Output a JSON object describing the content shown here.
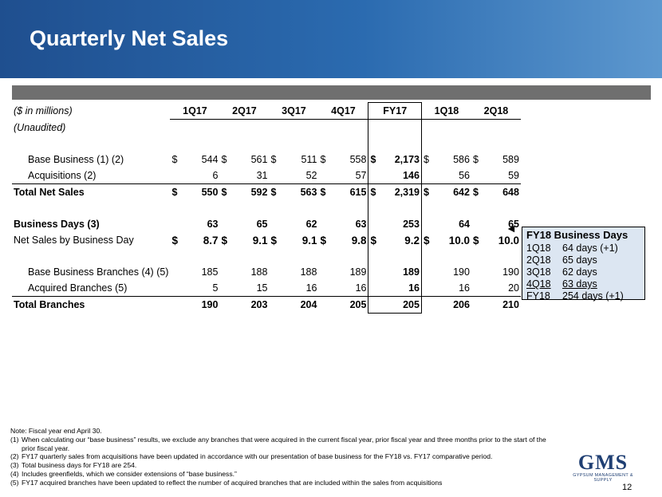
{
  "title": "Quarterly Net Sales",
  "table": {
    "unit_label": "($ in millions)",
    "unaudited_label": "(Unaudited)",
    "columns": [
      "1Q17",
      "2Q17",
      "3Q17",
      "4Q17",
      "FY17",
      "1Q18",
      "2Q18"
    ],
    "rows": {
      "base_business": {
        "label": "Base Business (1) (2)",
        "values": [
          "544",
          "561",
          "511",
          "558",
          "2,173",
          "586",
          "589"
        ]
      },
      "acquisitions": {
        "label": "Acquisitions (2)",
        "values": [
          "6",
          "31",
          "52",
          "57",
          "146",
          "56",
          "59"
        ]
      },
      "total_net_sales": {
        "label": "Total Net Sales",
        "values": [
          "550",
          "592",
          "563",
          "615",
          "2,319",
          "642",
          "648"
        ]
      },
      "business_days": {
        "label": "Business Days (3)",
        "values": [
          "63",
          "65",
          "62",
          "63",
          "253",
          "64",
          "65"
        ]
      },
      "net_sales_per_day": {
        "label": "Net Sales by Business Day",
        "values": [
          "8.7",
          "9.1",
          "9.1",
          "9.8",
          "9.2",
          "10.0",
          "10.0"
        ]
      },
      "base_branches": {
        "label": "Base Business Branches (4) (5)",
        "values": [
          "185",
          "188",
          "188",
          "189",
          "189",
          "190",
          "190"
        ]
      },
      "acquired_branches": {
        "label": "Acquired Branches (5)",
        "values": [
          "5",
          "15",
          "16",
          "16",
          "16",
          "16",
          "20"
        ]
      },
      "total_branches": {
        "label": "Total Branches",
        "values": [
          "190",
          "203",
          "204",
          "205",
          "205",
          "206",
          "210"
        ]
      }
    },
    "currency_symbol": "$"
  },
  "callout": {
    "title": "FY18 Business Days",
    "rows": [
      {
        "q": "1Q18",
        "d": "64 days (+1)"
      },
      {
        "q": "2Q18",
        "d": "65 days"
      },
      {
        "q": "3Q18",
        "d": "62 days"
      },
      {
        "q": "4Q18",
        "d": "63 days"
      },
      {
        "q": "FY18",
        "d": "254 days (+1)"
      }
    ],
    "arrow": "◄"
  },
  "notes": {
    "intro": "Note: Fiscal year end April 30.",
    "items": [
      {
        "k": "(1)",
        "t": "When calculating our “base business” results, we exclude any branches that were acquired in the current fiscal year, prior fiscal year and three months prior to the start of the prior fiscal year."
      },
      {
        "k": "(2)",
        "t": "FY17 quarterly sales from acquisitions have been updated in accordance with our presentation of base business for the FY18 vs. FY17 comparative period."
      },
      {
        "k": "(3)",
        "t": "Total business days for FY18 are 254."
      },
      {
        "k": "(4)",
        "t": "Includes greenfields, which we consider extensions of “base business.”"
      },
      {
        "k": "(5)",
        "t": "FY17 acquired branches have been updated to reflect the number of acquired branches that are included within the sales from acquisitions"
      }
    ]
  },
  "logo": {
    "name": "GMS",
    "tagline": "GYPSUM MANAGEMENT & SUPPLY"
  },
  "page_number": "12",
  "colors": {
    "header": "#2b6bb0",
    "callout_bg": "#dce6f2",
    "bar": "#6f6f6f",
    "logo": "#1f3f73"
  }
}
